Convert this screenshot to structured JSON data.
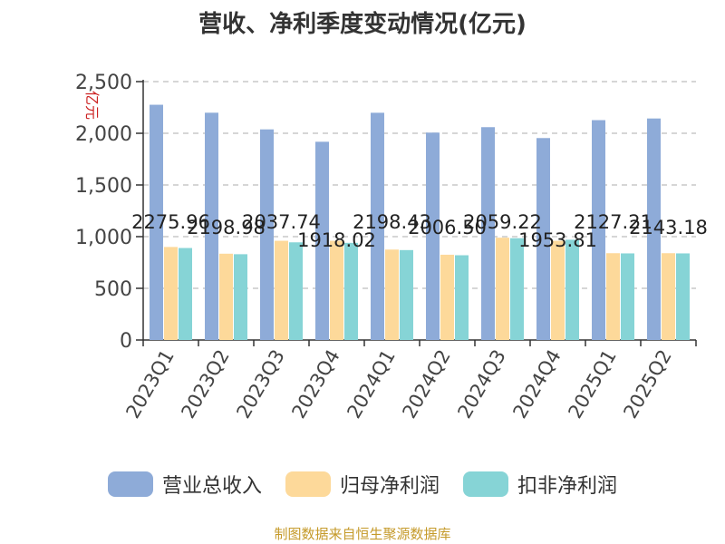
{
  "chart_data": {
    "type": "bar",
    "title": "营收、净利季度变动情况(亿元)",
    "ylabel": "亿元",
    "xlabel": "",
    "ylim": [
      0,
      2500
    ],
    "yticks": [
      "0",
      "500",
      "1,000",
      "1,500",
      "2,000",
      "2,500"
    ],
    "categories": [
      "2023Q1",
      "2023Q2",
      "2023Q3",
      "2023Q4",
      "2024Q1",
      "2024Q2",
      "2024Q3",
      "2024Q4",
      "2025Q1",
      "2025Q2"
    ],
    "series": [
      {
        "name": "营业总收入",
        "color": "#8eabd8",
        "values": [
          2275.96,
          2198.98,
          2037.74,
          1918.02,
          2198.43,
          2006.5,
          2059.22,
          1953.81,
          2127.21,
          2143.18
        ],
        "labels": [
          "2275.96",
          "2198.98",
          "2037.74",
          "1918.02",
          "2198.43",
          "2006.50",
          "2059.22",
          "1953.81",
          "2127.21",
          "2143.18"
        ]
      },
      {
        "name": "归母净利润",
        "color": "#fdd99a",
        "values": [
          900,
          835,
          960,
          960,
          875,
          825,
          990,
          960,
          840,
          840
        ]
      },
      {
        "name": "扣非净利润",
        "color": "#86d4d6",
        "values": [
          890,
          830,
          945,
          940,
          870,
          820,
          985,
          970,
          838,
          838
        ]
      }
    ],
    "grid": true,
    "legend_position": "bottom"
  },
  "source": "制图数据来自恒生聚源数据库"
}
